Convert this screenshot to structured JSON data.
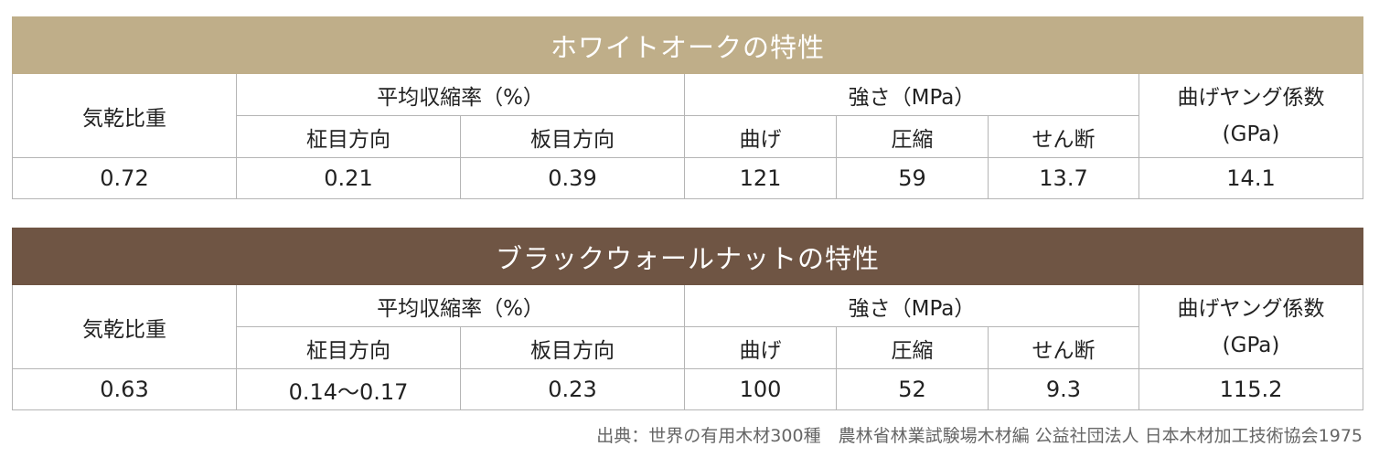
{
  "tables": [
    {
      "title": "ホワイトオークの特性",
      "header": {
        "air_dry_gravity": "気乾比重",
        "shrinkage_group": "平均収縮率（%）",
        "strength_group": "強さ（MPa）",
        "young_line1": "曲げヤング係数",
        "young_line2": "(GPa)",
        "radial": "柾目方向",
        "tangential": "板目方向",
        "bending": "曲げ",
        "compression": "圧縮",
        "shear": "せん断"
      },
      "values": {
        "air_dry_gravity": "0.72",
        "radial": "0.21",
        "tangential": "0.39",
        "bending": "121",
        "compression": "59",
        "shear": "13.7",
        "young": "14.1"
      }
    },
    {
      "title": "ブラックウォールナットの特性",
      "header": {
        "air_dry_gravity": "気乾比重",
        "shrinkage_group": "平均収縮率（%）",
        "strength_group": "強さ（MPa）",
        "young_line1": "曲げヤング係数",
        "young_line2": "(GPa)",
        "radial": "柾目方向",
        "tangential": "板目方向",
        "bending": "曲げ",
        "compression": "圧縮",
        "shear": "せん断"
      },
      "values": {
        "air_dry_gravity": "0.63",
        "radial": "0.14〜0.17",
        "tangential": "0.23",
        "bending": "100",
        "compression": "52",
        "shear": "9.3",
        "young": "115.2"
      }
    }
  ],
  "source": "出典：世界の有用木材300種　農林省林業試験場木材編 公益社団法人 日本木材加工技術協会1975",
  "colors": {
    "white_oak_header": "#bfae89",
    "walnut_header": "#6f5544",
    "border": "#b5b5b5"
  }
}
